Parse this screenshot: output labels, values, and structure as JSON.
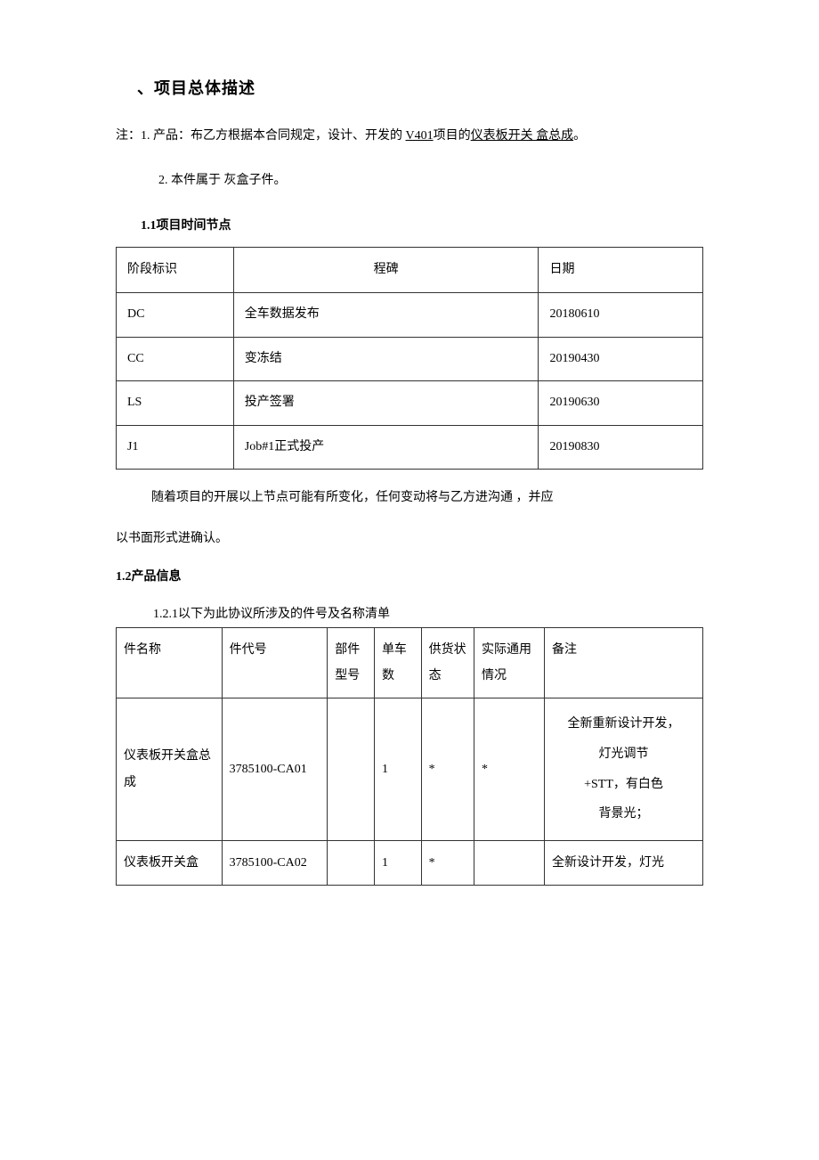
{
  "title": "、项目总体描述",
  "note1_prefix": "注：1. 产品：布乙方根据本合同规定，设计、开发的 ",
  "note1_underline1": "V401",
  "note1_mid": "项目的",
  "note1_underline2": "仪表板开关 盒总成",
  "note1_suffix": "。",
  "note2": "2. 本件属于 灰盒子件。",
  "section1_heading": "1.1项目时间节点",
  "milestone": {
    "headers": [
      "阶段标识",
      "程碑",
      "日期"
    ],
    "rows": [
      [
        "DC",
        "全车数据发布",
        "20180610"
      ],
      [
        "CC",
        "变冻结",
        "20190430"
      ],
      [
        "LS",
        "投产签署",
        "20190630"
      ],
      [
        "J1",
        "Job#1正式投产",
        "20190830"
      ]
    ]
  },
  "para1_line1": "随着项目的开展以上节点可能有所变化，任何变动将与乙方进沟通 ，并应",
  "para1_line2": "以书面形式进确认。",
  "section2_heading": "1.2产品信息",
  "section2_sub": "1.2.1以下为此协议所涉及的件号及名称清单",
  "product": {
    "headers": [
      "件名称",
      "件代号",
      "部件型号",
      "单车数",
      "供货状态",
      "实际通用情况",
      "备注"
    ],
    "rows": [
      {
        "name": "仪表板开关盒总成",
        "code": "3785100-CA01",
        "model": "",
        "qty": "1",
        "supply": "*",
        "usage": "*",
        "remark": "全新重新设计开发，\n灯光调节\n+STT，有白色\n背景光；"
      },
      {
        "name": "仪表板开关盒",
        "code": "3785100-CA02",
        "model": "",
        "qty": "1",
        "supply": "*",
        "usage": "",
        "remark": "全新设计开发，灯光"
      }
    ]
  }
}
